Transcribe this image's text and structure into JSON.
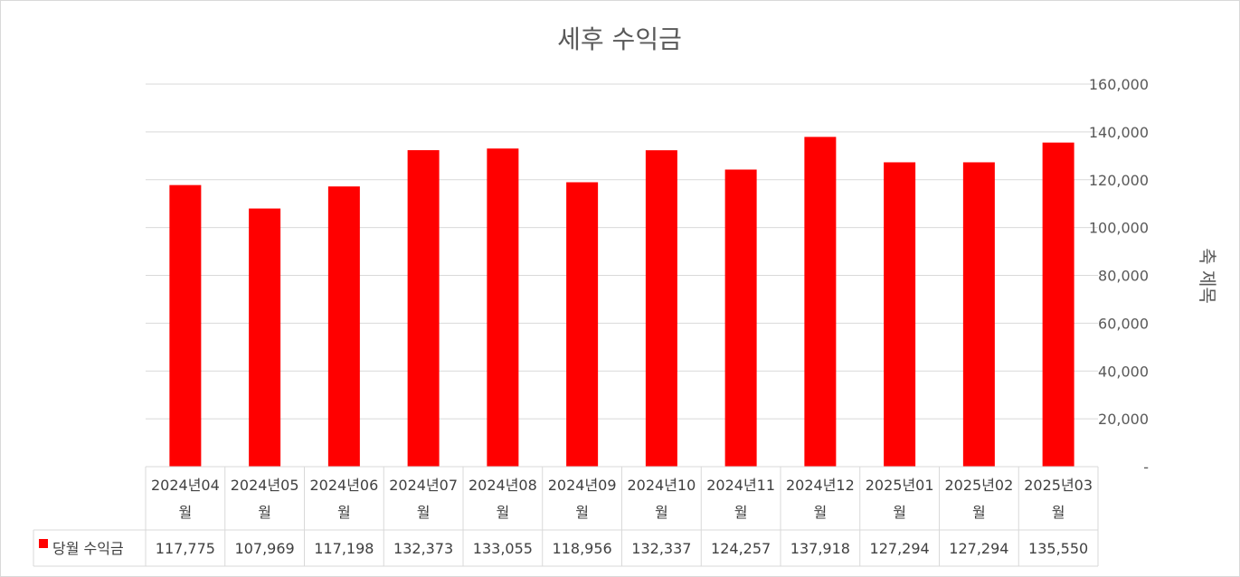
{
  "chart_data": {
    "type": "bar",
    "title": "세후 수익금",
    "ylabel": "축 제목",
    "ylim": [
      0,
      160000
    ],
    "yticks": [
      "-",
      "20,000",
      "40,000",
      "60,000",
      "80,000",
      "100,000",
      "120,000",
      "140,000",
      "160,000"
    ],
    "categories": [
      [
        "2024년04",
        "월"
      ],
      [
        "2024년05",
        "월"
      ],
      [
        "2024년06",
        "월"
      ],
      [
        "2024년07",
        "월"
      ],
      [
        "2024년08",
        "월"
      ],
      [
        "2024년09",
        "월"
      ],
      [
        "2024년10",
        "월"
      ],
      [
        "2024년11",
        "월"
      ],
      [
        "2024년12",
        "월"
      ],
      [
        "2025년01",
        "월"
      ],
      [
        "2025년02",
        "월"
      ],
      [
        "2025년03",
        "월"
      ]
    ],
    "series": [
      {
        "name": "당월 수익금",
        "color": "#ff0000",
        "values": [
          117775,
          107969,
          117198,
          132373,
          133055,
          118956,
          132337,
          124257,
          137918,
          127294,
          127294,
          135550
        ],
        "labels": [
          "117,775",
          "107,969",
          "117,198",
          "132,373",
          "133,055",
          "118,956",
          "132,337",
          "124,257",
          "137,918",
          "127,294",
          "127,294",
          "135,550"
        ]
      }
    ],
    "grid": true,
    "y_axis_position": "right",
    "data_table": true
  }
}
